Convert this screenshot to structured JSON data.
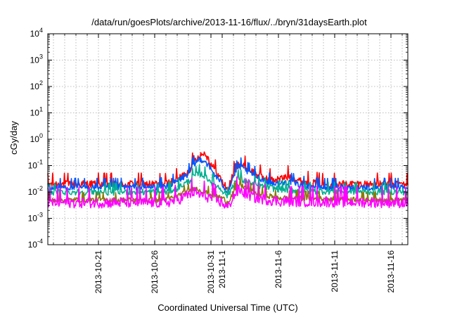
{
  "chart_data": {
    "type": "line",
    "title": "/data/run/goesPlots/archive/2013-11-16/flux/../bryn/31daysEarth.plot",
    "xlabel": "Coordinated Universal Time (UTC)",
    "ylabel": "cGy/day",
    "y_scale": "log",
    "ylim": [
      0.0001,
      10000
    ],
    "xlim": [
      "2013-10-16T12:00",
      "2013-11-17T12:00"
    ],
    "grid": true,
    "legend": "none",
    "y_ticks": [
      {
        "mant": "10",
        "exp": "-4"
      },
      {
        "mant": "10",
        "exp": "-3"
      },
      {
        "mant": "10",
        "exp": "-2"
      },
      {
        "mant": "10",
        "exp": "-1"
      },
      {
        "mant": "10",
        "exp": "0"
      },
      {
        "mant": "10",
        "exp": "1"
      },
      {
        "mant": "10",
        "exp": "2"
      },
      {
        "mant": "10",
        "exp": "3"
      },
      {
        "mant": "10",
        "exp": "4"
      }
    ],
    "x_ticks": [
      "2013-10-21",
      "2013-10-26",
      "2013-10-31",
      "2013-11-1",
      "2013-11-6",
      "2013-11-11",
      "2013-11-16"
    ],
    "x_minor_ticks": [
      "2013-10-17",
      "2013-10-18",
      "2013-10-19",
      "2013-10-20",
      "2013-10-22",
      "2013-10-23",
      "2013-10-24",
      "2013-10-25",
      "2013-10-27",
      "2013-10-28",
      "2013-10-29",
      "2013-10-30",
      "2013-11-2",
      "2013-11-3",
      "2013-11-4",
      "2013-11-5",
      "2013-11-7",
      "2013-11-8",
      "2013-11-9",
      "2013-11-10",
      "2013-11-12",
      "2013-11-13",
      "2013-11-14",
      "2013-11-15",
      "2013-11-17"
    ],
    "series": [
      {
        "color": "#ff0000",
        "noise": 0.3,
        "x": [
          "2013-10-16T12:00",
          "2013-10-19",
          "2013-10-22",
          "2013-10-25",
          "2013-10-27",
          "2013-10-28",
          "2013-10-29",
          "2013-10-29T12:00",
          "2013-10-30",
          "2013-10-30T12:00",
          "2013-10-31",
          "2013-11-1",
          "2013-11-1T12:00",
          "2013-11-2",
          "2013-11-2T12:00",
          "2013-11-3",
          "2013-11-4",
          "2013-11-5",
          "2013-11-6",
          "2013-11-7",
          "2013-11-8",
          "2013-11-10",
          "2013-11-13",
          "2013-11-17T12:00"
        ],
        "y": [
          0.02,
          0.02,
          0.02,
          0.02,
          0.02,
          0.03,
          0.06,
          0.15,
          0.25,
          0.3,
          0.12,
          0.025,
          0.012,
          0.05,
          0.12,
          0.09,
          0.05,
          0.03,
          0.03,
          0.04,
          0.025,
          0.02,
          0.02,
          0.02
        ]
      },
      {
        "color": "#0055ff",
        "noise": 0.25,
        "x": [
          "2013-10-16T12:00",
          "2013-10-19",
          "2013-10-22",
          "2013-10-25",
          "2013-10-27",
          "2013-10-28",
          "2013-10-29",
          "2013-10-29T12:00",
          "2013-10-30",
          "2013-10-30T12:00",
          "2013-10-31",
          "2013-11-1",
          "2013-11-1T12:00",
          "2013-11-2",
          "2013-11-2T12:00",
          "2013-11-3",
          "2013-11-4",
          "2013-11-5",
          "2013-11-6",
          "2013-11-7",
          "2013-11-8",
          "2013-11-10",
          "2013-11-13",
          "2013-11-17T12:00"
        ],
        "y": [
          0.015,
          0.015,
          0.015,
          0.015,
          0.016,
          0.025,
          0.05,
          0.11,
          0.18,
          0.15,
          0.07,
          0.02,
          0.01,
          0.04,
          0.1,
          0.07,
          0.04,
          0.025,
          0.02,
          0.025,
          0.018,
          0.015,
          0.015,
          0.015
        ]
      },
      {
        "color": "#00b090",
        "noise": 0.25,
        "x": [
          "2013-10-16T12:00",
          "2013-10-22",
          "2013-10-27",
          "2013-10-28",
          "2013-10-29",
          "2013-10-29T12:00",
          "2013-10-30",
          "2013-10-30T12:00",
          "2013-10-31",
          "2013-11-1",
          "2013-11-1T12:00",
          "2013-11-2",
          "2013-11-2T12:00",
          "2013-11-3",
          "2013-11-4",
          "2013-11-6",
          "2013-11-8",
          "2013-11-17T12:00"
        ],
        "y": [
          0.01,
          0.01,
          0.01,
          0.014,
          0.025,
          0.04,
          0.05,
          0.04,
          0.025,
          0.012,
          0.007,
          0.02,
          0.035,
          0.025,
          0.018,
          0.013,
          0.011,
          0.01
        ]
      },
      {
        "color": "#8a7a00",
        "noise": 0.2,
        "x": [
          "2013-10-16T12:00",
          "2013-10-22",
          "2013-10-27",
          "2013-10-28",
          "2013-10-29",
          "2013-10-29T12:00",
          "2013-10-30",
          "2013-10-31",
          "2013-11-1",
          "2013-11-1T12:00",
          "2013-11-2",
          "2013-11-2T12:00",
          "2013-11-3",
          "2013-11-4",
          "2013-11-6",
          "2013-11-17T12:00"
        ],
        "y": [
          0.005,
          0.005,
          0.005,
          0.007,
          0.011,
          0.014,
          0.012,
          0.008,
          0.006,
          0.004,
          0.01,
          0.02,
          0.015,
          0.009,
          0.006,
          0.005
        ]
      },
      {
        "color": "#ff00ff",
        "noise": 0.42,
        "x": [
          "2013-10-16T12:00",
          "2013-10-22",
          "2013-10-27",
          "2013-10-28",
          "2013-10-29",
          "2013-10-29T12:00",
          "2013-10-30",
          "2013-10-31",
          "2013-11-1",
          "2013-11-1T12:00",
          "2013-11-2",
          "2013-11-2T12:00",
          "2013-11-3",
          "2013-11-4",
          "2013-11-6",
          "2013-11-17T12:00"
        ],
        "y": [
          0.004,
          0.004,
          0.004,
          0.005,
          0.008,
          0.01,
          0.008,
          0.006,
          0.004,
          0.0025,
          0.007,
          0.012,
          0.009,
          0.006,
          0.0045,
          0.004
        ]
      }
    ]
  }
}
